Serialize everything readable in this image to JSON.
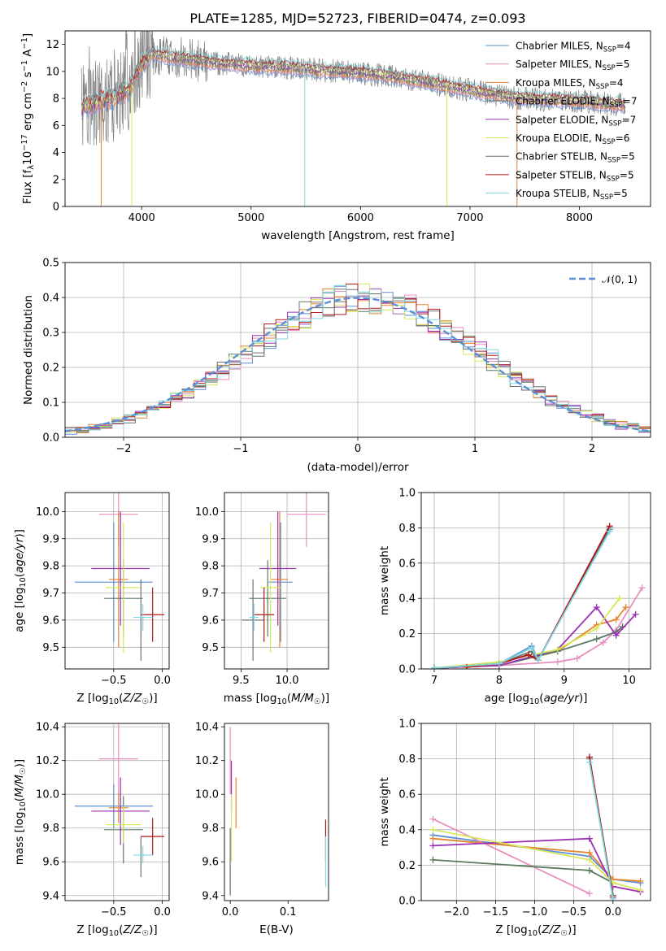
{
  "title": "PLATE=1285, MJD=52723, FIBERID=0474, z=0.093",
  "colors": {
    "Chabrier MILES": "#5b8fd6",
    "Salpeter MILES": "#e88fbe",
    "Kroupa MILES": "#e6832e",
    "Chabrier ELODIE": "#587a60",
    "Salpeter ELODIE": "#9b30b5",
    "Kroupa ELODIE": "#d6e85a",
    "Chabrier STELIB": "#707070",
    "Salpeter STELIB": "#b01818",
    "Kroupa STELIB": "#7fd9e0",
    "data": "#808080",
    "normal": "#5b8fd6"
  },
  "chart_data": [
    {
      "id": "spectrum",
      "type": "line",
      "title": "PLATE=1285, MJD=52723, FIBERID=0474, z=0.093",
      "xlabel": "wavelength [Angstrom, rest frame]",
      "ylabel": "Flux [f_λ10^-17 erg cm^-2 s^-1 A^-1]",
      "xlim": [
        3300,
        8650
      ],
      "ylim": [
        0,
        13
      ],
      "xticks": [
        "4000",
        "5000",
        "6000",
        "7000",
        "8000"
      ],
      "yticks": [
        "0",
        "2",
        "4",
        "6",
        "8",
        "10",
        "12"
      ],
      "grid": false,
      "legend_position": "top-right",
      "legend": [
        "Chabrier MILES, N_SSP=4",
        "Salpeter MILES, N_SSP=5",
        "Kroupa MILES, N_SSP=4",
        "Chabrier ELODIE, N_SSP=7",
        "Salpeter ELODIE, N_SSP=7",
        "Kroupa ELODIE, N_SSP=6",
        "Chabrier STELIB, N_SSP=5",
        "Salpeter STELIB, N_SSP=5",
        "Kroupa STELIB, N_SSP=5"
      ],
      "continuum": {
        "x": [
          3450,
          3600,
          3750,
          3900,
          4000,
          4100,
          4300,
          4500,
          4700,
          5000,
          5300,
          5600,
          6000,
          6300,
          6600,
          6800,
          7000,
          7200,
          7500,
          8000,
          8400
        ],
        "y": [
          7.2,
          7.8,
          8.0,
          8.8,
          10.6,
          11.3,
          11.0,
          10.8,
          10.6,
          10.4,
          10.3,
          10.1,
          9.9,
          9.6,
          9.2,
          8.9,
          8.6,
          8.3,
          8.0,
          7.8,
          7.5
        ]
      },
      "spikes_x": [
        3630,
        3910,
        5490,
        6790,
        7430
      ]
    },
    {
      "id": "residuals",
      "type": "step",
      "xlabel": "(data-model)/error",
      "ylabel": "Normed distribution",
      "xlim": [
        -2.5,
        2.5
      ],
      "ylim": [
        0,
        0.5
      ],
      "xticks": [
        "−2",
        "−1",
        "0",
        "1",
        "2"
      ],
      "yticks": [
        "0.0",
        "0.1",
        "0.2",
        "0.3",
        "0.4",
        "0.5"
      ],
      "grid": true,
      "legend": [
        "𝒩(0, 1)"
      ],
      "legend_position": "top-right",
      "bin_width": 0.1
    },
    {
      "id": "age_vs_Z",
      "type": "errorbar",
      "xlabel": "Z [log10(Z/Z☉)]",
      "ylabel": "age [log10(age/yr)]",
      "xlim": [
        -1.0,
        0.07
      ],
      "ylim": [
        9.42,
        10.07
      ],
      "xticks": [
        "−0.5",
        "0.0"
      ],
      "yticks": [
        "9.5",
        "9.6",
        "9.7",
        "9.8",
        "9.9",
        "10.0"
      ],
      "grid": true,
      "points": [
        {
          "m": "Chabrier MILES",
          "x": -0.5,
          "xe": 0.4,
          "y": 9.74,
          "ye": 0.22
        },
        {
          "m": "Salpeter MILES",
          "x": -0.45,
          "xe": 0.2,
          "y": 9.99,
          "ye": 0.12
        },
        {
          "m": "Kroupa MILES",
          "x": -0.45,
          "xe": 0.1,
          "y": 9.75,
          "ye": 0.25
        },
        {
          "m": "Chabrier ELODIE",
          "x": -0.4,
          "xe": 0.2,
          "y": 9.68,
          "ye": 0.14
        },
        {
          "m": "Salpeter ELODIE",
          "x": -0.43,
          "xe": 0.3,
          "y": 9.79,
          "ye": 0.21
        },
        {
          "m": "Kroupa ELODIE",
          "x": -0.4,
          "xe": 0.18,
          "y": 9.72,
          "ye": 0.24
        },
        {
          "m": "Chabrier STELIB",
          "x": -0.22,
          "xe": 0.0,
          "y": 9.6,
          "ye": 0.15
        },
        {
          "m": "Salpeter STELIB",
          "x": -0.1,
          "xe": 0.12,
          "y": 9.62,
          "ye": 0.1
        },
        {
          "m": "Kroupa STELIB",
          "x": -0.2,
          "xe": 0.1,
          "y": 9.61,
          "ye": 0.05
        }
      ]
    },
    {
      "id": "age_vs_mass",
      "type": "errorbar",
      "xlabel": "mass [log10(M/M☉)]",
      "ylabel": "",
      "xlim": [
        9.32,
        10.45
      ],
      "ylim": [
        9.42,
        10.07
      ],
      "xticks": [
        "9.5",
        "10.0"
      ],
      "yticks": [
        "9.5",
        "9.6",
        "9.7",
        "9.8",
        "9.9",
        "10.0"
      ],
      "grid": true,
      "points": [
        {
          "m": "Chabrier MILES",
          "x": 9.93,
          "xe": 0.13,
          "y": 9.74,
          "ye": 0.22
        },
        {
          "m": "Salpeter MILES",
          "x": 10.21,
          "xe": 0.21,
          "y": 9.99,
          "ye": 0.12
        },
        {
          "m": "Kroupa MILES",
          "x": 9.92,
          "xe": 0.09,
          "y": 9.75,
          "ye": 0.25
        },
        {
          "m": "Chabrier ELODIE",
          "x": 9.79,
          "xe": 0.2,
          "y": 9.68,
          "ye": 0.14
        },
        {
          "m": "Salpeter ELODIE",
          "x": 9.9,
          "xe": 0.2,
          "y": 9.79,
          "ye": 0.21
        },
        {
          "m": "Kroupa ELODIE",
          "x": 9.82,
          "xe": 0.11,
          "y": 9.72,
          "ye": 0.24
        },
        {
          "m": "Chabrier STELIB",
          "x": 9.63,
          "xe": 0.12,
          "y": 9.6,
          "ye": 0.15
        },
        {
          "m": "Salpeter STELIB",
          "x": 9.75,
          "xe": 0.11,
          "y": 9.62,
          "ye": 0.1
        },
        {
          "m": "Kroupa STELIB",
          "x": 9.64,
          "xe": 0.05,
          "y": 9.61,
          "ye": 0.05
        }
      ]
    },
    {
      "id": "mass_weight_vs_age",
      "type": "line",
      "xlabel": "age [log10(age/yr)]",
      "ylabel": "mass weight",
      "xlim": [
        6.8,
        10.33
      ],
      "ylim": [
        0,
        1.0
      ],
      "xticks": [
        "7",
        "8",
        "9",
        "10"
      ],
      "yticks": [
        "0.0",
        "0.2",
        "0.4",
        "0.6",
        "0.8",
        "1.0"
      ],
      "grid": true,
      "series": [
        {
          "name": "Chabrier MILES",
          "x": [
            7.0,
            8.0,
            8.5,
            8.6,
            9.7
          ],
          "y": [
            0.005,
            0.03,
            0.13,
            0.05,
            0.79
          ]
        },
        {
          "name": "Salpeter MILES",
          "x": [
            7.0,
            8.0,
            8.9,
            9.2,
            9.6,
            9.8,
            10.2
          ],
          "y": [
            0.005,
            0.02,
            0.04,
            0.06,
            0.15,
            0.22,
            0.46
          ]
        },
        {
          "name": "Kroupa MILES",
          "x": [
            7.0,
            8.0,
            8.9,
            9.5,
            9.8,
            9.95
          ],
          "y": [
            0.005,
            0.02,
            0.1,
            0.25,
            0.28,
            0.35
          ]
        },
        {
          "name": "Chabrier ELODIE",
          "x": [
            7.0,
            8.0,
            8.9,
            9.5,
            9.8,
            9.9
          ],
          "y": [
            0.005,
            0.02,
            0.1,
            0.17,
            0.21,
            0.24
          ]
        },
        {
          "name": "Salpeter ELODIE",
          "x": [
            7.0,
            8.0,
            8.9,
            9.5,
            9.8,
            10.1
          ],
          "y": [
            0.005,
            0.02,
            0.11,
            0.35,
            0.19,
            0.31
          ]
        },
        {
          "name": "Kroupa ELODIE",
          "x": [
            7.0,
            8.0,
            8.9,
            9.5,
            9.85
          ],
          "y": [
            0.005,
            0.04,
            0.11,
            0.23,
            0.4
          ]
        },
        {
          "name": "Chabrier STELIB",
          "x": [
            7.0,
            8.0,
            8.5,
            8.6,
            9.7
          ],
          "y": [
            0.005,
            0.03,
            0.1,
            0.05,
            0.8
          ]
        },
        {
          "name": "Salpeter STELIB",
          "x": [
            7.5,
            8.0,
            8.45,
            8.6,
            9.7
          ],
          "y": [
            0.01,
            0.03,
            0.08,
            0.05,
            0.81
          ]
        },
        {
          "name": "Kroupa STELIB",
          "x": [
            7.0,
            8.0,
            8.5,
            8.6,
            9.7
          ],
          "y": [
            0.005,
            0.03,
            0.12,
            0.05,
            0.78
          ]
        }
      ]
    },
    {
      "id": "mass_vs_Z",
      "type": "errorbar",
      "xlabel": "Z [log10(Z/Z☉)]",
      "ylabel": "mass [log10(M/M☉)]",
      "xlim": [
        -1.0,
        0.07
      ],
      "ylim": [
        9.37,
        10.42
      ],
      "xticks": [
        "−0.5",
        "0.0"
      ],
      "yticks": [
        "9.4",
        "9.6",
        "9.8",
        "10.0",
        "10.2",
        "10.4"
      ],
      "grid": true,
      "points": [
        {
          "m": "Chabrier MILES",
          "x": -0.5,
          "xe": 0.4,
          "y": 9.93,
          "ye": 0.13
        },
        {
          "m": "Salpeter MILES",
          "x": -0.45,
          "xe": 0.2,
          "y": 10.21,
          "ye": 0.21
        },
        {
          "m": "Kroupa MILES",
          "x": -0.45,
          "xe": 0.1,
          "y": 9.92,
          "ye": 0.09
        },
        {
          "m": "Chabrier ELODIE",
          "x": -0.4,
          "xe": 0.2,
          "y": 9.79,
          "ye": 0.2
        },
        {
          "m": "Salpeter ELODIE",
          "x": -0.43,
          "xe": 0.3,
          "y": 9.9,
          "ye": 0.2
        },
        {
          "m": "Kroupa ELODIE",
          "x": -0.4,
          "xe": 0.18,
          "y": 9.82,
          "ye": 0.11
        },
        {
          "m": "Chabrier STELIB",
          "x": -0.22,
          "xe": 0.0,
          "y": 9.63,
          "ye": 0.12
        },
        {
          "m": "Salpeter STELIB",
          "x": -0.1,
          "xe": 0.12,
          "y": 9.75,
          "ye": 0.11
        },
        {
          "m": "Kroupa STELIB",
          "x": -0.2,
          "xe": 0.1,
          "y": 9.64,
          "ye": 0.05
        }
      ]
    },
    {
      "id": "mass_vs_ebv",
      "type": "errorbar",
      "xlabel": "E(B-V)",
      "ylabel": "",
      "xlim": [
        -0.01,
        0.17
      ],
      "ylim": [
        9.37,
        10.42
      ],
      "xticks": [
        "0.0",
        "0.1"
      ],
      "yticks": [
        "9.4",
        "9.6",
        "9.8",
        "10.0",
        "10.2",
        "10.4"
      ],
      "grid": false,
      "points": [
        {
          "m": "Salpeter MILES",
          "x": 0.0,
          "y": 10.2,
          "ye": 0.2
        },
        {
          "m": "Salpeter ELODIE",
          "x": 0.002,
          "y": 10.05,
          "ye": 0.15
        },
        {
          "m": "Kroupa MILES",
          "x": 0.01,
          "y": 9.95,
          "ye": 0.15
        },
        {
          "m": "Kroupa ELODIE",
          "x": 0.002,
          "y": 9.8,
          "ye": 0.2
        },
        {
          "m": "Chabrier ELODIE",
          "x": 0.0,
          "y": 9.6,
          "ye": 0.2
        },
        {
          "m": "Salpeter STELIB",
          "x": 0.165,
          "y": 9.73,
          "ye": 0.12
        },
        {
          "m": "Kroupa STELIB",
          "x": 0.165,
          "y": 9.6,
          "ye": 0.15
        }
      ]
    },
    {
      "id": "mass_weight_vs_Z",
      "type": "line",
      "xlabel": "Z [log10(Z/Z☉)]",
      "ylabel": "mass weight",
      "xlim": [
        -2.45,
        0.48
      ],
      "ylim": [
        0,
        1.0
      ],
      "xticks": [
        "−2.0",
        "−1.5",
        "−1.0",
        "−0.5",
        "0.0"
      ],
      "yticks": [
        "0.0",
        "0.2",
        "0.4",
        "0.6",
        "0.8",
        "1.0"
      ],
      "grid": true,
      "series": [
        {
          "name": "Chabrier MILES",
          "x": [
            -2.3,
            -0.3,
            0.0,
            0.35
          ],
          "y": [
            0.37,
            0.25,
            0.12,
            0.1
          ]
        },
        {
          "name": "Salpeter MILES",
          "x": [
            -2.3,
            -0.3
          ],
          "y": [
            0.46,
            0.04
          ]
        },
        {
          "name": "Kroupa MILES",
          "x": [
            -2.3,
            -0.3,
            0.0,
            0.35
          ],
          "y": [
            0.35,
            0.27,
            0.12,
            0.11
          ]
        },
        {
          "name": "Chabrier ELODIE",
          "x": [
            -2.3,
            -0.3,
            0.0
          ],
          "y": [
            0.23,
            0.17,
            0.1
          ]
        },
        {
          "name": "Salpeter ELODIE",
          "x": [
            -2.3,
            -0.3,
            0.0,
            0.35
          ],
          "y": [
            0.31,
            0.35,
            0.08,
            0.05
          ]
        },
        {
          "name": "Kroupa ELODIE",
          "x": [
            -2.3,
            -0.3,
            0.0,
            0.35
          ],
          "y": [
            0.4,
            0.23,
            0.1,
            0.06
          ]
        },
        {
          "name": "Chabrier STELIB",
          "x": [
            -0.3,
            0.0
          ],
          "y": [
            0.8,
            0.03
          ]
        },
        {
          "name": "Salpeter STELIB",
          "x": [
            -0.3,
            0.0
          ],
          "y": [
            0.81,
            0.02
          ]
        },
        {
          "name": "Kroupa STELIB",
          "x": [
            -0.3,
            0.0
          ],
          "y": [
            0.78,
            0.01
          ]
        }
      ]
    }
  ]
}
